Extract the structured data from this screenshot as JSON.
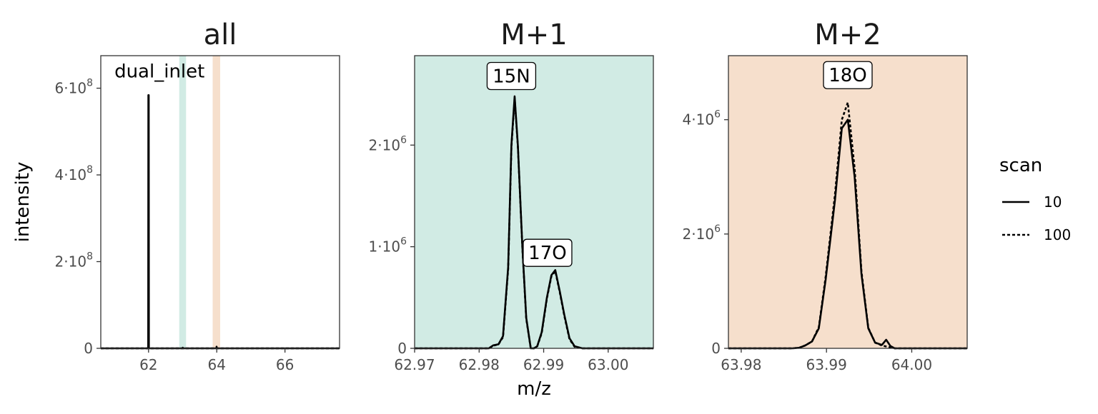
{
  "chart_data": {
    "type": "line",
    "shared": {
      "ylabel": "intensity",
      "xlabel": "m/z",
      "legend": {
        "title": "scan",
        "position": "right",
        "entries": [
          {
            "name": "10",
            "linetype": "solid"
          },
          {
            "name": "100",
            "linetype": "dashed"
          }
        ]
      },
      "colors": {
        "M+1": "#d1ebe4",
        "M+2": "#f6dfcc",
        "line": "#000000",
        "frame": "#333333"
      }
    },
    "panels": [
      {
        "title": "all",
        "background": "#ffffff",
        "xlim": [
          60.6,
          67.6
        ],
        "ylim": [
          0,
          675000000
        ],
        "xticks": [
          {
            "v": 62,
            "t": "62"
          },
          {
            "v": 64,
            "t": "64"
          },
          {
            "v": 66,
            "t": "66"
          }
        ],
        "yticks": [
          {
            "v": 0,
            "m": "0",
            "e": ""
          },
          {
            "v": 200000000,
            "m": "2",
            "e": "8"
          },
          {
            "v": 400000000,
            "m": "4",
            "e": "8"
          },
          {
            "v": 600000000,
            "m": "6",
            "e": "8"
          }
        ],
        "bands": [
          {
            "x0": 62.9,
            "x1": 63.1,
            "color": "#d1ebe4"
          },
          {
            "x0": 63.88,
            "x1": 64.1,
            "color": "#f6dfcc"
          }
        ],
        "labels": [
          {
            "text": "dual_inlet",
            "x": 61.0,
            "y": 640000000,
            "boxed": false
          }
        ],
        "series": [
          {
            "name": "10",
            "dash": false,
            "points": [
              [
                60.6,
                0
              ],
              [
                61.99,
                0
              ],
              [
                61.995,
                584000000
              ],
              [
                62.005,
                584000000
              ],
              [
                62.01,
                0
              ],
              [
                63.0,
                0
              ],
              [
                63.005,
                1500000
              ],
              [
                63.01,
                0
              ],
              [
                63.99,
                0
              ],
              [
                63.995,
                3800000
              ],
              [
                64.0,
                0
              ],
              [
                67.6,
                0
              ]
            ]
          },
          {
            "name": "100",
            "dash": true,
            "points": [
              [
                60.6,
                0
              ],
              [
                67.6,
                0
              ]
            ]
          }
        ]
      },
      {
        "title": "M+1",
        "background": "#d1ebe4",
        "xlim": [
          62.97,
          63.007
        ],
        "ylim": [
          0,
          2880000
        ],
        "xticks": [
          {
            "v": 62.97,
            "t": "62.97"
          },
          {
            "v": 62.98,
            "t": "62.98"
          },
          {
            "v": 62.99,
            "t": "62.99"
          },
          {
            "v": 63.0,
            "t": "63.00"
          }
        ],
        "yticks": [
          {
            "v": 0,
            "m": "0",
            "e": ""
          },
          {
            "v": 1000000,
            "m": "1",
            "e": "6"
          },
          {
            "v": 2000000,
            "m": "2",
            "e": "6"
          }
        ],
        "bands": [],
        "labels": [
          {
            "text": "15N",
            "x": 62.985,
            "y": 2680000,
            "boxed": true
          },
          {
            "text": "17O",
            "x": 62.9906,
            "y": 940000,
            "boxed": true
          }
        ],
        "series": [
          {
            "name": "10",
            "dash": false,
            "points": [
              [
                62.97,
                0
              ],
              [
                62.9815,
                0
              ],
              [
                62.9822,
                30000
              ],
              [
                62.983,
                40000
              ],
              [
                62.9837,
                120000
              ],
              [
                62.9845,
                800000
              ],
              [
                62.985,
                2000000
              ],
              [
                62.9855,
                2480000
              ],
              [
                62.986,
                2000000
              ],
              [
                62.9867,
                1000000
              ],
              [
                62.9873,
                300000
              ],
              [
                62.988,
                0
              ],
              [
                62.9885,
                0
              ],
              [
                62.989,
                20000
              ],
              [
                62.9897,
                160000
              ],
              [
                62.9905,
                500000
              ],
              [
                62.9912,
                720000
              ],
              [
                62.9918,
                770000
              ],
              [
                62.9925,
                560000
              ],
              [
                62.9932,
                330000
              ],
              [
                62.994,
                100000
              ],
              [
                62.9948,
                20000
              ],
              [
                62.996,
                0
              ],
              [
                63.007,
                0
              ]
            ]
          },
          {
            "name": "100",
            "dash": true,
            "points": [
              [
                62.97,
                0
              ],
              [
                62.9815,
                0
              ],
              [
                62.9822,
                25000
              ],
              [
                62.983,
                40000
              ],
              [
                62.9837,
                110000
              ],
              [
                62.9845,
                780000
              ],
              [
                62.985,
                1980000
              ],
              [
                62.9855,
                2460000
              ],
              [
                62.986,
                1990000
              ],
              [
                62.9867,
                990000
              ],
              [
                62.9873,
                290000
              ],
              [
                62.988,
                0
              ],
              [
                62.9885,
                0
              ],
              [
                62.989,
                20000
              ],
              [
                62.9897,
                150000
              ],
              [
                62.9905,
                490000
              ],
              [
                62.9912,
                710000
              ],
              [
                62.9918,
                760000
              ],
              [
                62.9925,
                550000
              ],
              [
                62.9932,
                320000
              ],
              [
                62.994,
                90000
              ],
              [
                62.9948,
                15000
              ],
              [
                62.996,
                0
              ],
              [
                63.007,
                0
              ]
            ]
          }
        ]
      },
      {
        "title": "M+2",
        "background": "#f6dfcc",
        "xlim": [
          63.9785,
          64.0065
        ],
        "ylim": [
          0,
          5120000
        ],
        "xticks": [
          {
            "v": 63.98,
            "t": "63.98"
          },
          {
            "v": 63.99,
            "t": "63.99"
          },
          {
            "v": 64.0,
            "t": "64.00"
          }
        ],
        "yticks": [
          {
            "v": 0,
            "m": "0",
            "e": ""
          },
          {
            "v": 2000000,
            "m": "2",
            "e": "6"
          },
          {
            "v": 4000000,
            "m": "4",
            "e": "6"
          }
        ],
        "bands": [],
        "labels": [
          {
            "text": "18O",
            "x": 63.9925,
            "y": 4780000,
            "boxed": true
          }
        ],
        "series": [
          {
            "name": "10",
            "dash": false,
            "points": [
              [
                63.9785,
                0
              ],
              [
                63.986,
                0
              ],
              [
                63.9868,
                10000
              ],
              [
                63.9875,
                50000
              ],
              [
                63.9883,
                120000
              ],
              [
                63.9891,
                350000
              ],
              [
                63.9899,
                1200000
              ],
              [
                63.991,
                2600000
              ],
              [
                63.9918,
                3850000
              ],
              [
                63.9925,
                4000000
              ],
              [
                63.9933,
                3000000
              ],
              [
                63.9941,
                1300000
              ],
              [
                63.9949,
                350000
              ],
              [
                63.9957,
                100000
              ],
              [
                63.9965,
                60000
              ],
              [
                63.997,
                150000
              ],
              [
                63.9975,
                40000
              ],
              [
                63.998,
                0
              ],
              [
                64.0065,
                0
              ]
            ]
          },
          {
            "name": "100",
            "dash": true,
            "points": [
              [
                63.9785,
                0
              ],
              [
                63.986,
                0
              ],
              [
                63.9868,
                10000
              ],
              [
                63.9875,
                50000
              ],
              [
                63.9883,
                120000
              ],
              [
                63.9891,
                370000
              ],
              [
                63.9899,
                1250000
              ],
              [
                63.991,
                2700000
              ],
              [
                63.9918,
                4000000
              ],
              [
                63.9925,
                4300000
              ],
              [
                63.9933,
                3150000
              ],
              [
                63.9941,
                1350000
              ],
              [
                63.9949,
                360000
              ],
              [
                63.9957,
                100000
              ],
              [
                63.9965,
                50000
              ],
              [
                63.998,
                0
              ],
              [
                64.0065,
                0
              ]
            ]
          }
        ]
      }
    ]
  }
}
